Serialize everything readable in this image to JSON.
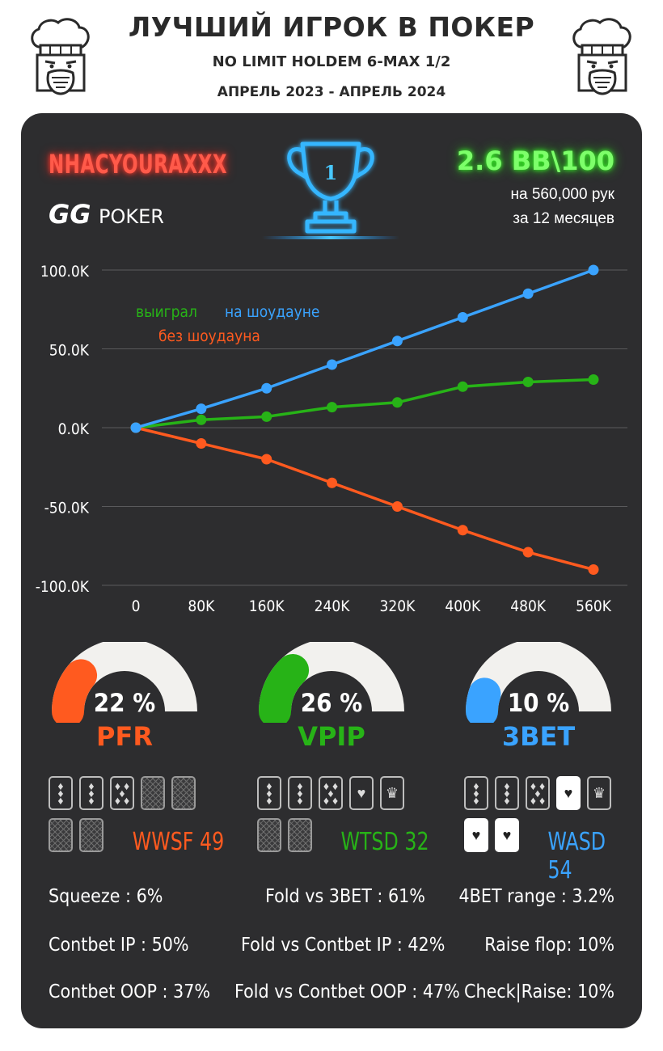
{
  "header": {
    "title": "ЛУЧШИЙ ИГРОК В ПОКЕР",
    "subtitle": "NO LIMIT HOLDEM 6-MAX 1/2",
    "period": "АПРЕЛЬ 2023 - АПРЕЛЬ 2024"
  },
  "player": {
    "name": "NHACYOURAXXX",
    "room_logo_text": "POKER",
    "room_logo_mark": "GG",
    "trophy_number": "1"
  },
  "summary": {
    "rate": "2.6 BB\\100",
    "hands": "на 560,000 рук",
    "months": "за  12 месяцев"
  },
  "colors": {
    "blue": "#3aa3ff",
    "green": "#27b317",
    "orange": "#ff5a1f",
    "card_bg": "#2d2d2f"
  },
  "chart_data": {
    "type": "line",
    "x": [
      0,
      80000,
      160000,
      240000,
      320000,
      400000,
      480000,
      560000
    ],
    "x_tick_labels": [
      "0",
      "80K",
      "160K",
      "240K",
      "320K",
      "400K",
      "480K",
      "560K"
    ],
    "y_tick_labels": [
      "100.0K",
      "50.0K",
      "0.0K",
      "-50.0K",
      "-100.0K"
    ],
    "y_ticks": [
      100000,
      50000,
      0,
      -50000,
      -100000
    ],
    "ylim": [
      -100000,
      100000
    ],
    "grid": true,
    "legend_position": "top-left",
    "series": [
      {
        "name": "на шоудауне",
        "color": "#3aa3ff",
        "values": [
          0,
          12000,
          25000,
          40000,
          55000,
          70000,
          85000,
          100000
        ]
      },
      {
        "name": "выиграл",
        "color": "#27b317",
        "values": [
          0,
          5000,
          7000,
          13000,
          16000,
          26000,
          29000,
          30500
        ]
      },
      {
        "name": "без шоудауна",
        "color": "#ff5a1f",
        "values": [
          0,
          -10000,
          -20000,
          -35000,
          -50000,
          -65000,
          -79000,
          -90000
        ]
      }
    ]
  },
  "gauges": [
    {
      "label": "PFR",
      "percent_text": "22 %",
      "value": 22,
      "color": "#ff5a1f"
    },
    {
      "label": "VPIP",
      "percent_text": "26 %",
      "value": 26,
      "color": "#27b317"
    },
    {
      "label": "3BET",
      "percent_text": "10 %",
      "value": 10,
      "color": "#3aa3ff"
    }
  ],
  "street_stats": [
    {
      "label": "WWSF 49",
      "color": "#ff5a1f"
    },
    {
      "label": "WTSD 32",
      "color": "#27b317"
    },
    {
      "label": "WASD 54",
      "color": "#3aa3ff"
    }
  ],
  "stats": {
    "col1": [
      "Squeeze : 6%",
      "Contbet IP : 50%",
      "Contbet OOP : 37%"
    ],
    "col2": [
      "Fold vs 3BET : 61%",
      "Fold vs Contbet IP : 42%",
      "Fold vs Contbet OOP : 47%"
    ],
    "col3": [
      "4BET range : 3.2%",
      "Raise flop: 10%",
      "Check|Raise: 10%"
    ]
  }
}
